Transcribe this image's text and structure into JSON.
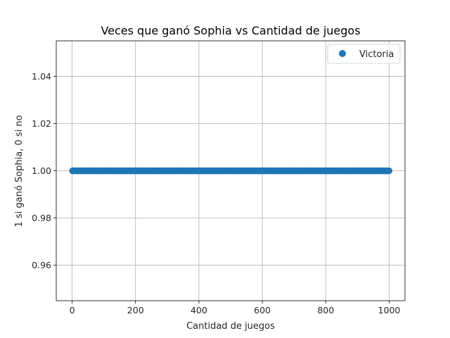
{
  "chart_data": {
    "type": "scatter",
    "title": "Veces que ganó Sophia vs Cantidad de juegos",
    "xlabel": "Cantidad de juegos",
    "ylabel": "1 si ganó Sophia, 0 si no",
    "xlim": [
      -50,
      1050
    ],
    "ylim": [
      0.945,
      1.055
    ],
    "x_ticks": [
      0,
      200,
      400,
      600,
      800,
      1000
    ],
    "x_tick_labels": [
      "0",
      "200",
      "400",
      "600",
      "800",
      "1000"
    ],
    "y_ticks": [
      0.96,
      0.98,
      1.0,
      1.02,
      1.04
    ],
    "y_tick_labels": [
      "0.96",
      "0.98",
      "1.00",
      "1.02",
      "1.04"
    ],
    "grid": true,
    "legend_position": "top-right",
    "series": [
      {
        "name": "Victoria",
        "color": "#1f77b4",
        "x_start": 1,
        "x_end": 1000,
        "x_step": 1,
        "y_constant": 1.0
      }
    ]
  }
}
